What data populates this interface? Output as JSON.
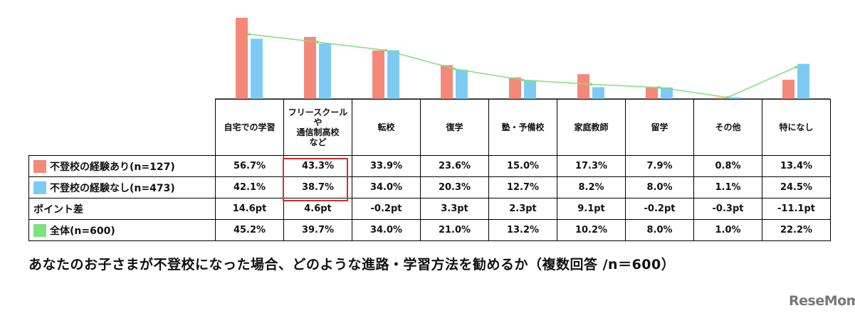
{
  "chart_data": {
    "type": "bar",
    "categories": [
      "自宅での学習",
      "フリースクール\nや\n通信制高校\nなど",
      "転校",
      "復学",
      "塾・予備校",
      "家庭教師",
      "留学",
      "その他",
      "特になし"
    ],
    "series": [
      {
        "name": "不登校の経験あり(n=127)",
        "values": [
          56.7,
          43.3,
          33.9,
          23.6,
          15.0,
          17.3,
          7.9,
          0.8,
          13.4
        ],
        "labels": [
          "56.7%",
          "43.3%",
          "33.9%",
          "23.6%",
          "15.0%",
          "17.3%",
          "7.9%",
          "0.8%",
          "13.4%"
        ],
        "color": "#f4897a"
      },
      {
        "name": "不登校の経験なし(n=473)",
        "values": [
          42.1,
          38.7,
          34.0,
          20.3,
          12.7,
          8.2,
          8.0,
          1.1,
          24.5
        ],
        "labels": [
          "42.1%",
          "38.7%",
          "34.0%",
          "20.3%",
          "12.7%",
          "8.2%",
          "8.0%",
          "1.1%",
          "24.5%"
        ],
        "color": "#7dcbf5"
      },
      {
        "name": "全体(n=600)",
        "values": [
          45.2,
          39.7,
          34.0,
          21.0,
          13.2,
          10.2,
          8.0,
          1.0,
          22.2
        ],
        "labels": [
          "45.2%",
          "39.7%",
          "34.0%",
          "21.0%",
          "13.2%",
          "10.2%",
          "8.0%",
          "1.0%",
          "22.2%"
        ],
        "color": "#7ee07e",
        "kind": "line"
      }
    ],
    "point_diff": {
      "label": "ポイント差",
      "values": [
        "14.6pt",
        "4.6pt",
        "-0.2pt",
        "3.3pt",
        "2.3pt",
        "9.1pt",
        "-0.2pt",
        "-0.3pt",
        "-11.1pt"
      ]
    },
    "ylim": [
      0,
      60
    ],
    "grid": false,
    "highlight_category_index": 1
  },
  "caption": "あなたのお子さまが不登校になった場合、どのような進路・学習方法を勧めるか（複数回答 /n＝600）",
  "logo": "ReseMom"
}
